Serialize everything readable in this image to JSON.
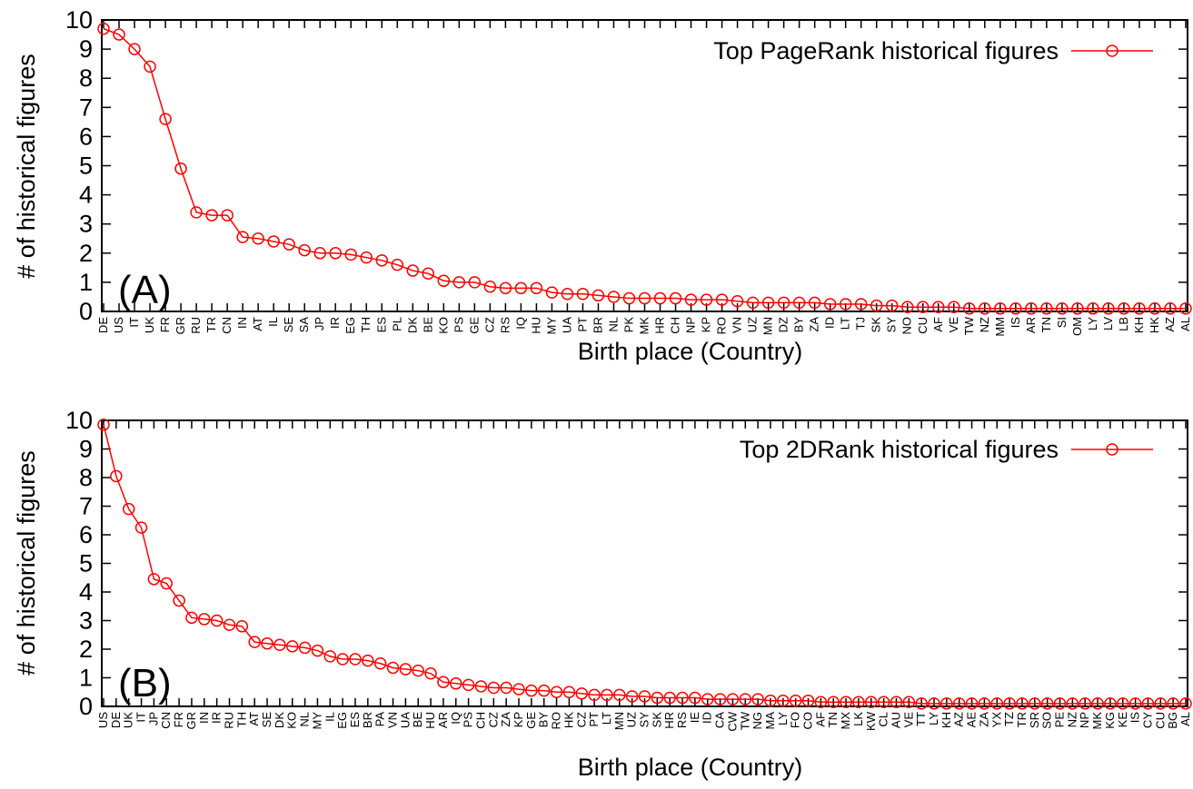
{
  "chart_data": [
    {
      "type": "line",
      "panel_label": "(A)",
      "xlabel": "Birth place (Country)",
      "ylabel": "# of historical figures",
      "ylim": [
        0,
        10
      ],
      "yticks": [
        0,
        1,
        2,
        3,
        4,
        5,
        6,
        7,
        8,
        9,
        10
      ],
      "grid": false,
      "legend_position": "top-right",
      "marker": "open-circle",
      "color": "#ff0000",
      "categories": [
        "DE",
        "US",
        "IT",
        "UK",
        "FR",
        "GR",
        "RU",
        "TR",
        "CN",
        "IN",
        "AT",
        "IL",
        "SE",
        "SA",
        "JP",
        "IR",
        "EG",
        "TH",
        "ES",
        "PL",
        "DK",
        "BE",
        "KO",
        "PS",
        "GE",
        "CZ",
        "RS",
        "IQ",
        "HU",
        "MY",
        "UA",
        "PT",
        "BR",
        "NL",
        "PK",
        "MK",
        "HR",
        "CH",
        "NP",
        "KP",
        "RO",
        "VN",
        "UZ",
        "MN",
        "DZ",
        "BY",
        "ZA",
        "ID",
        "LT",
        "TJ",
        "SK",
        "SY",
        "NO",
        "CU",
        "AF",
        "VE",
        "TW",
        "NZ",
        "MM",
        "IS",
        "AR",
        "TN",
        "SI",
        "OM",
        "LY",
        "LV",
        "LB",
        "KH",
        "HK",
        "AZ",
        "AL"
      ],
      "series": [
        {
          "name": "Top PageRank historical figures",
          "values": [
            9.7,
            9.5,
            9.0,
            8.4,
            6.6,
            4.9,
            3.4,
            3.3,
            3.3,
            2.55,
            2.5,
            2.4,
            2.3,
            2.1,
            2.0,
            2.0,
            1.95,
            1.85,
            1.75,
            1.6,
            1.4,
            1.3,
            1.05,
            1.0,
            1.0,
            0.85,
            0.8,
            0.8,
            0.8,
            0.65,
            0.6,
            0.6,
            0.55,
            0.5,
            0.45,
            0.45,
            0.45,
            0.45,
            0.4,
            0.4,
            0.4,
            0.35,
            0.3,
            0.3,
            0.3,
            0.3,
            0.3,
            0.25,
            0.25,
            0.25,
            0.2,
            0.2,
            0.15,
            0.15,
            0.15,
            0.15,
            0.1,
            0.1,
            0.1,
            0.1,
            0.1,
            0.1,
            0.1,
            0.1,
            0.1,
            0.1,
            0.1,
            0.1,
            0.1,
            0.1,
            0.1
          ]
        }
      ]
    },
    {
      "type": "line",
      "panel_label": "(B)",
      "xlabel": "Birth place (Country)",
      "ylabel": "# of historical figures",
      "ylim": [
        0,
        10
      ],
      "yticks": [
        0,
        1,
        2,
        3,
        4,
        5,
        6,
        7,
        8,
        9,
        10
      ],
      "grid": false,
      "legend_position": "top-right",
      "marker": "open-circle",
      "color": "#ff0000",
      "categories": [
        "US",
        "DE",
        "UK",
        "IT",
        "JP",
        "CN",
        "FR",
        "GR",
        "IN",
        "IR",
        "RU",
        "TH",
        "AT",
        "SE",
        "DK",
        "KO",
        "NL",
        "MY",
        "IL",
        "EG",
        "ES",
        "BR",
        "PA",
        "VN",
        "UA",
        "BE",
        "HU",
        "AR",
        "IQ",
        "PS",
        "CH",
        "CZ",
        "ZA",
        "KP",
        "GE",
        "BY",
        "RO",
        "HK",
        "CZ",
        "PT",
        "LT",
        "MN",
        "UZ",
        "SY",
        "SK",
        "HR",
        "RS",
        "IE",
        "ID",
        "CA",
        "CW",
        "TW",
        "NG",
        "MA",
        "LY",
        "FO",
        "CO",
        "AF",
        "TN",
        "MX",
        "LK",
        "KW",
        "CL",
        "AU",
        "VE",
        "TT",
        "LY",
        "KH",
        "AZ",
        "AE",
        "ZA",
        "YX",
        "TZ",
        "TR",
        "SR",
        "SO",
        "PE",
        "NZ",
        "NP",
        "MK",
        "KG",
        "KE",
        "IS",
        "CY",
        "CU",
        "BG",
        "AL"
      ],
      "series": [
        {
          "name": "Top 2DRank historical figures",
          "values": [
            9.85,
            8.05,
            6.9,
            6.25,
            4.45,
            4.3,
            3.7,
            3.1,
            3.05,
            3.0,
            2.85,
            2.8,
            2.25,
            2.2,
            2.15,
            2.1,
            2.05,
            1.95,
            1.75,
            1.65,
            1.65,
            1.6,
            1.5,
            1.35,
            1.3,
            1.25,
            1.15,
            0.85,
            0.8,
            0.75,
            0.7,
            0.65,
            0.65,
            0.6,
            0.55,
            0.55,
            0.5,
            0.5,
            0.45,
            0.4,
            0.4,
            0.4,
            0.35,
            0.35,
            0.3,
            0.3,
            0.3,
            0.3,
            0.25,
            0.25,
            0.25,
            0.25,
            0.25,
            0.2,
            0.2,
            0.2,
            0.2,
            0.15,
            0.15,
            0.15,
            0.15,
            0.15,
            0.15,
            0.15,
            0.15,
            0.1,
            0.1,
            0.1,
            0.1,
            0.1,
            0.1,
            0.1,
            0.1,
            0.1,
            0.1,
            0.1,
            0.1,
            0.1,
            0.1,
            0.1,
            0.1,
            0.1,
            0.1,
            0.1,
            0.1,
            0.1,
            0.1
          ]
        }
      ]
    }
  ]
}
